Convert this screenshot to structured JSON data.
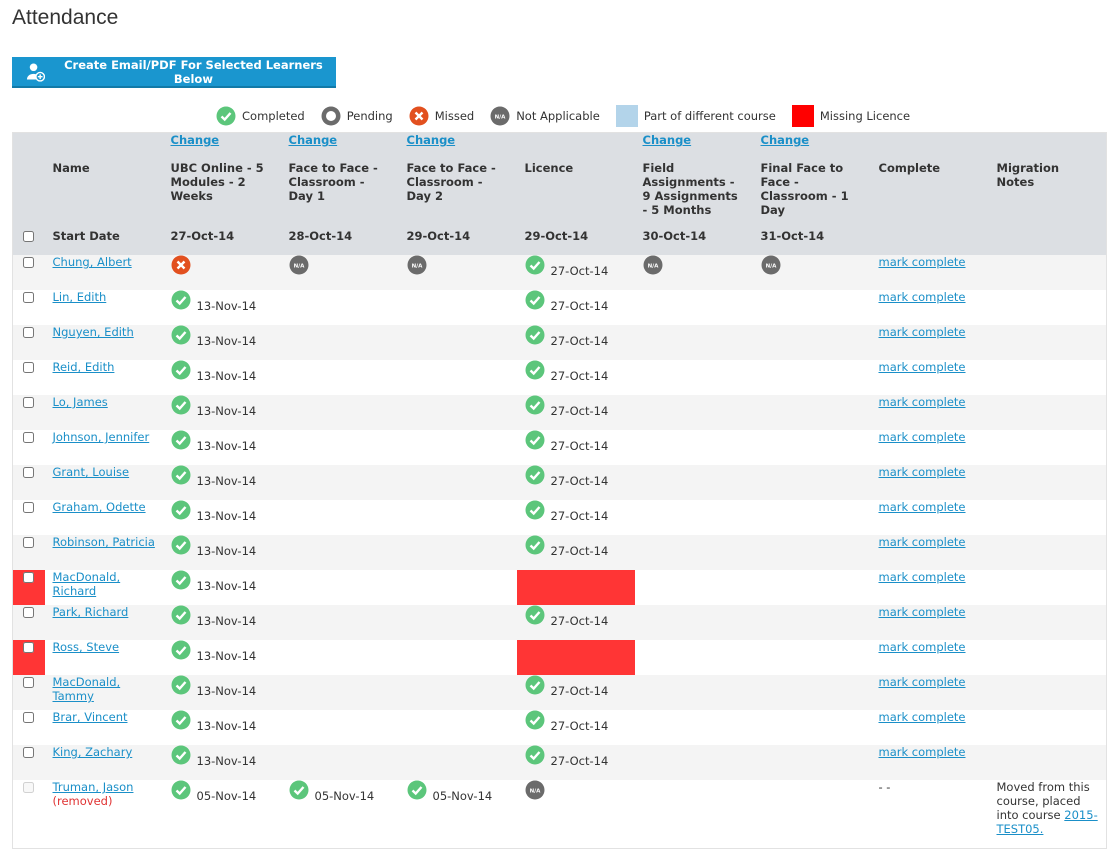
{
  "header": {
    "title": "Attendance",
    "button": "Create Email/PDF For Selected Learners Below"
  },
  "legend": {
    "na_text": "N/A",
    "items": [
      {
        "label": "Completed",
        "status": "completed"
      },
      {
        "label": "Pending",
        "status": "pending"
      },
      {
        "label": "Missed",
        "status": "missed"
      },
      {
        "label": "Not Applicable",
        "status": "na"
      },
      {
        "label": "Part of different course",
        "status": "other-course"
      },
      {
        "label": "Missing Licence",
        "status": "missing-licence"
      }
    ]
  },
  "table": {
    "change_links": [
      null,
      null,
      "Change",
      "Change",
      "Change",
      null,
      "Change",
      "Change",
      null,
      null
    ],
    "headers": [
      null,
      "Name",
      "UBC Online - 5 Modules - 2 Weeks",
      "Face to Face - Classroom - Day 1",
      "Face to Face - Classroom - Day 2",
      "Licence",
      "Field Assignments - 9 Assignments - 5 Months",
      "Final Face to Face - Classroom - 1 Day",
      "Complete",
      "Migration Notes"
    ],
    "start_dates": [
      null,
      "Start Date",
      "27-Oct-14",
      "28-Oct-14",
      "29-Oct-14",
      "29-Oct-14",
      "30-Oct-14",
      "31-Oct-14",
      null,
      null
    ],
    "rows": [
      {
        "name": "Chung, Albert",
        "cells": [
          {
            "status": "missed"
          },
          {
            "status": "na"
          },
          {
            "status": "na"
          },
          {
            "status": "completed",
            "date": "27-Oct-14"
          },
          {
            "status": "na"
          },
          {
            "status": "na"
          }
        ],
        "complete": "mark complete"
      },
      {
        "name": "Lin, Edith",
        "cells": [
          {
            "status": "completed",
            "date": "13-Nov-14"
          },
          null,
          null,
          {
            "status": "completed",
            "date": "27-Oct-14"
          },
          null,
          null
        ],
        "complete": "mark complete"
      },
      {
        "name": "Nguyen, Edith",
        "cells": [
          {
            "status": "completed",
            "date": "13-Nov-14"
          },
          null,
          null,
          {
            "status": "completed",
            "date": "27-Oct-14"
          },
          null,
          null
        ],
        "complete": "mark complete"
      },
      {
        "name": "Reid, Edith",
        "cells": [
          {
            "status": "completed",
            "date": "13-Nov-14"
          },
          null,
          null,
          {
            "status": "completed",
            "date": "27-Oct-14"
          },
          null,
          null
        ],
        "complete": "mark complete"
      },
      {
        "name": "Lo, James",
        "cells": [
          {
            "status": "completed",
            "date": "13-Nov-14"
          },
          null,
          null,
          {
            "status": "completed",
            "date": "27-Oct-14"
          },
          null,
          null
        ],
        "complete": "mark complete"
      },
      {
        "name": "Johnson, Jennifer",
        "cells": [
          {
            "status": "completed",
            "date": "13-Nov-14"
          },
          null,
          null,
          {
            "status": "completed",
            "date": "27-Oct-14"
          },
          null,
          null
        ],
        "complete": "mark complete"
      },
      {
        "name": "Grant, Louise",
        "cells": [
          {
            "status": "completed",
            "date": "13-Nov-14"
          },
          null,
          null,
          {
            "status": "completed",
            "date": "27-Oct-14"
          },
          null,
          null
        ],
        "complete": "mark complete"
      },
      {
        "name": "Graham, Odette",
        "cells": [
          {
            "status": "completed",
            "date": "13-Nov-14"
          },
          null,
          null,
          {
            "status": "completed",
            "date": "27-Oct-14"
          },
          null,
          null
        ],
        "complete": "mark complete"
      },
      {
        "name": "Robinson, Patricia",
        "cells": [
          {
            "status": "completed",
            "date": "13-Nov-14"
          },
          null,
          null,
          {
            "status": "completed",
            "date": "27-Oct-14"
          },
          null,
          null
        ],
        "complete": "mark complete"
      },
      {
        "name": "MacDonald, Richard",
        "missing_licence": true,
        "cells": [
          {
            "status": "completed",
            "date": "13-Nov-14"
          },
          null,
          null,
          {
            "status": "missing-licence"
          },
          null,
          null
        ],
        "complete": "mark complete"
      },
      {
        "name": "Park, Richard",
        "cells": [
          {
            "status": "completed",
            "date": "13-Nov-14"
          },
          null,
          null,
          {
            "status": "completed",
            "date": "27-Oct-14"
          },
          null,
          null
        ],
        "complete": "mark complete"
      },
      {
        "name": "Ross, Steve",
        "missing_licence": true,
        "cells": [
          {
            "status": "completed",
            "date": "13-Nov-14"
          },
          null,
          null,
          {
            "status": "missing-licence"
          },
          null,
          null
        ],
        "complete": "mark complete"
      },
      {
        "name": "MacDonald, Tammy",
        "cells": [
          {
            "status": "completed",
            "date": "13-Nov-14"
          },
          null,
          null,
          {
            "status": "completed",
            "date": "27-Oct-14"
          },
          null,
          null
        ],
        "complete": "mark complete"
      },
      {
        "name": "Brar, Vincent",
        "cells": [
          {
            "status": "completed",
            "date": "13-Nov-14"
          },
          null,
          null,
          {
            "status": "completed",
            "date": "27-Oct-14"
          },
          null,
          null
        ],
        "complete": "mark complete"
      },
      {
        "name": "King, Zachary",
        "cells": [
          {
            "status": "completed",
            "date": "13-Nov-14"
          },
          null,
          null,
          {
            "status": "completed",
            "date": "27-Oct-14"
          },
          null,
          null
        ],
        "complete": "mark complete"
      },
      {
        "name": "Truman, Jason",
        "removed": "(removed)",
        "cells": [
          {
            "status": "completed",
            "date": "05-Nov-14"
          },
          {
            "status": "completed",
            "date": "05-Nov-14"
          },
          {
            "status": "completed",
            "date": "05-Nov-14"
          },
          {
            "status": "na"
          },
          null,
          null
        ],
        "complete_text": "- -",
        "notes": "Moved from this course, placed into course",
        "notes_link": "2015-TEST05."
      }
    ]
  }
}
